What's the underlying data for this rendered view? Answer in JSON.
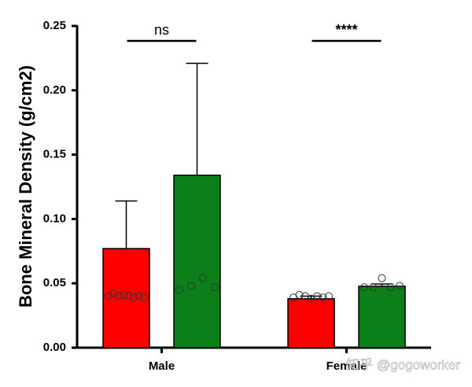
{
  "chart_data": {
    "type": "bar",
    "ylabel": "Bone Mineral Density (g/cm2)",
    "categories": [
      "Male",
      "Female"
    ],
    "series": [
      {
        "color": "#ff0000",
        "values": [
          0.077,
          0.038
        ],
        "errors": [
          0.037,
          0.002
        ],
        "points": [
          [
            0.04,
            0.042,
            0.04,
            0.041,
            0.04,
            0.039,
            0.04,
            0.039
          ],
          [
            0.039,
            0.041,
            0.04,
            0.038,
            0.04,
            0.039,
            0.04
          ]
        ]
      },
      {
        "color": "#0b7f1a",
        "values": [
          0.134,
          0.0477
        ],
        "errors": [
          0.087,
          0.0018
        ],
        "points": [
          [
            0.045,
            0.048,
            0.054,
            0.047
          ],
          [
            0.047,
            0.047,
            0.054,
            0.047,
            0.048
          ]
        ]
      }
    ],
    "annotations": [
      "ns",
      "****"
    ],
    "ylim": [
      0,
      0.25
    ],
    "yticks": [
      {
        "value": 0,
        "label": "0.00"
      },
      0.05,
      {
        "value": 0.1,
        "label": "0.10"
      },
      0.15,
      {
        "value": 0.2,
        "label": "0.20"
      },
      0.25
    ],
    "watermark": "知乎 @gogoworker"
  }
}
